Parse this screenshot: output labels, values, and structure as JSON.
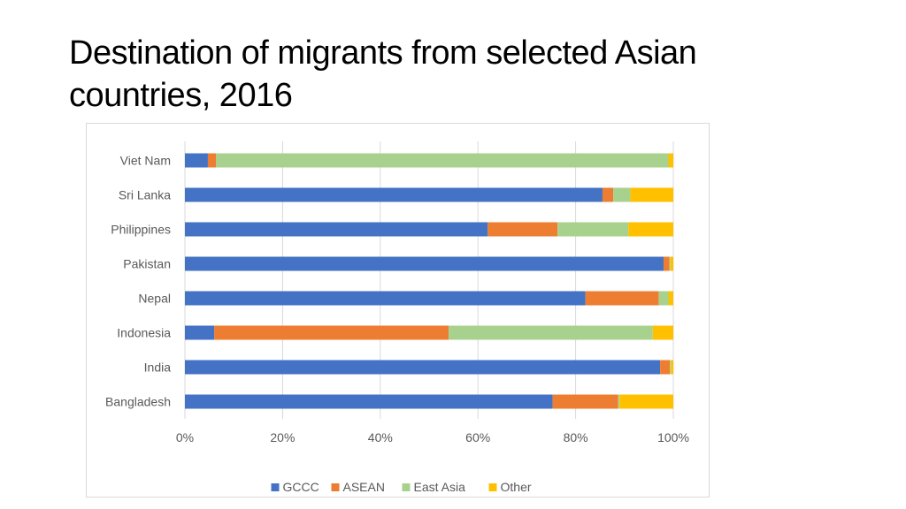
{
  "slide": {
    "title": "Destination of migrants from selected Asian countries, 2016"
  },
  "chart_data": {
    "type": "bar",
    "orientation": "horizontal",
    "stacked": "percent",
    "categories": [
      "Viet Nam",
      "Sri Lanka",
      "Philippines",
      "Pakistan",
      "Nepal",
      "Indonesia",
      "India",
      "Bangladesh"
    ],
    "series": [
      {
        "name": "GCCC",
        "color": "#4472C4",
        "values": [
          4.7,
          85.5,
          62.0,
          98.0,
          82.0,
          6.0,
          97.3,
          75.3
        ]
      },
      {
        "name": "ASEAN",
        "color": "#ED7D31",
        "values": [
          1.7,
          2.2,
          14.3,
          1.2,
          15.0,
          48.0,
          2.0,
          13.4
        ]
      },
      {
        "name": "East Asia",
        "color": "#A9D18E",
        "values": [
          92.6,
          3.5,
          14.5,
          0.2,
          2.0,
          41.8,
          0.2,
          0.3
        ]
      },
      {
        "name": "Other",
        "color": "#FFC000",
        "values": [
          1.0,
          8.8,
          9.2,
          0.6,
          1.0,
          4.2,
          0.5,
          11.0
        ]
      }
    ],
    "xaxis": {
      "ticks": [
        "0%",
        "20%",
        "40%",
        "60%",
        "80%",
        "100%"
      ],
      "range": [
        0,
        100
      ]
    },
    "grid": true,
    "legend": "bottom"
  }
}
